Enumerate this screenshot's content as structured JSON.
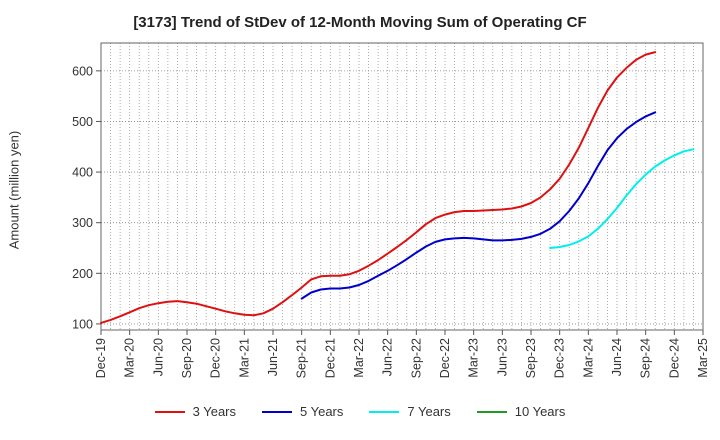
{
  "chart_data": {
    "type": "line",
    "title": "[3173]  Trend of StDev of 12-Month Moving Sum of Operating CF",
    "xlabel": "",
    "ylabel": "Amount (million yen)",
    "x_ticks": [
      "Dec-19",
      "Mar-20",
      "Jun-20",
      "Sep-20",
      "Dec-20",
      "Mar-21",
      "Jun-21",
      "Sep-21",
      "Dec-21",
      "Mar-22",
      "Jun-22",
      "Sep-22",
      "Dec-22",
      "Mar-23",
      "Jun-23",
      "Sep-23",
      "Dec-23",
      "Mar-24",
      "Jun-24",
      "Sep-24",
      "Dec-24",
      "Mar-25"
    ],
    "y_ticks": [
      100,
      200,
      300,
      400,
      500,
      600
    ],
    "ylim": [
      88,
      655
    ],
    "grid": true,
    "legend_position": "bottom",
    "series": [
      {
        "name": "3 Years",
        "color": "#dd1111",
        "start_index": 0,
        "values": [
          102,
          108,
          115,
          123,
          131,
          137,
          141,
          144,
          145,
          143,
          140,
          135,
          130,
          125,
          121,
          118,
          117,
          121,
          130,
          143,
          157,
          172,
          188,
          194,
          195,
          195,
          198,
          205,
          215,
          226,
          239,
          252,
          266,
          281,
          297,
          309,
          316,
          321,
          323,
          323,
          324,
          325,
          326,
          328,
          332,
          339,
          350,
          366,
          387,
          415,
          448,
          487,
          527,
          561,
          587,
          606,
          622,
          632,
          637
        ]
      },
      {
        "name": "5 Years",
        "color": "#0000cc",
        "start_index": 21,
        "values": [
          150,
          162,
          168,
          170,
          170,
          172,
          177,
          185,
          195,
          205,
          216,
          228,
          241,
          253,
          262,
          267,
          269,
          270,
          269,
          267,
          265,
          265,
          266,
          268,
          272,
          278,
          288,
          303,
          323,
          348,
          378,
          412,
          443,
          467,
          485,
          499,
          510,
          518
        ]
      },
      {
        "name": "7 Years",
        "color": "#00eeee",
        "start_index": 47,
        "values": [
          250,
          252,
          256,
          263,
          273,
          288,
          307,
          329,
          354,
          376,
          395,
          411,
          423,
          433,
          441,
          445
        ]
      },
      {
        "name": "10 Years",
        "color": "#229922",
        "start_index": 0,
        "values": []
      }
    ]
  }
}
